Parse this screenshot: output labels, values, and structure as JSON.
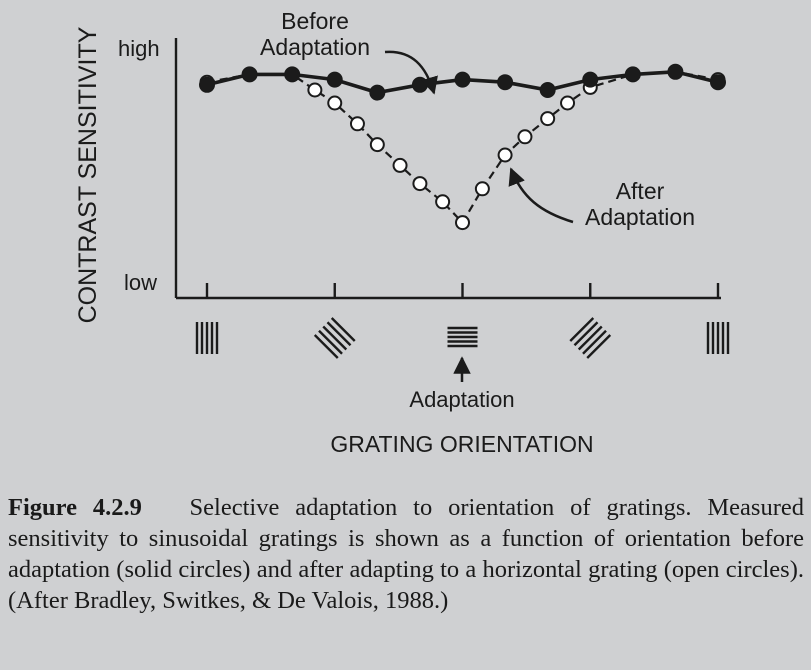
{
  "chart_data": {
    "type": "line",
    "ylabel": "CONTRAST SENSITIVITY",
    "xlabel": "GRATING ORIENTATION",
    "y_ticks": {
      "high": "high",
      "low": "low"
    },
    "x": [
      -90,
      -75,
      -60,
      -45,
      -30,
      -15,
      0,
      15,
      30,
      45,
      60,
      75,
      90
    ],
    "xlim": [
      -90,
      90
    ],
    "ylim": [
      0,
      100
    ],
    "series": [
      {
        "name": "Before Adaptation",
        "marker": "filled",
        "line": "solid",
        "x": [
          -90,
          -75,
          -60,
          -45,
          -30,
          -15,
          0,
          15,
          30,
          45,
          60,
          75,
          90
        ],
        "values": [
          82,
          86,
          86,
          84,
          79,
          82,
          84,
          83,
          80,
          84,
          86,
          87,
          83
        ]
      },
      {
        "name": "After Adaptation",
        "marker": "open",
        "line": "dashed",
        "x": [
          -90,
          -75,
          -60,
          -52,
          -45,
          -37,
          -30,
          -22,
          -15,
          -7,
          0,
          7,
          15,
          22,
          30,
          37,
          45,
          60,
          75,
          90
        ],
        "values": [
          83,
          86,
          86,
          80,
          75,
          67,
          59,
          51,
          44,
          37,
          29,
          42,
          55,
          62,
          69,
          75,
          81,
          86,
          87,
          84
        ]
      }
    ],
    "adaptation_orientation": 0,
    "annotations": {
      "before": "Before\nAdaptation",
      "after": "After\nAdaptation",
      "adaptation": "Adaptation"
    },
    "grating_icons": [
      {
        "orientation": "vertical",
        "name": "grating-vertical-left-icon"
      },
      {
        "orientation": "oblique-left",
        "name": "grating-oblique-left-icon"
      },
      {
        "orientation": "horizontal",
        "name": "grating-horizontal-icon"
      },
      {
        "orientation": "oblique-right",
        "name": "grating-oblique-right-icon"
      },
      {
        "orientation": "vertical",
        "name": "grating-vertical-right-icon"
      }
    ]
  },
  "caption": {
    "label": "Figure 4.2.9",
    "text": "Selective adaptation to orientation of gratings. Measured sensitivity to sinusoidal gratings is shown as a function of orientation before adaptation (solid circles) and after adapting to a horizontal grating (open circles). (After Bradley, Switkes, & De Valois, 1988.)"
  }
}
